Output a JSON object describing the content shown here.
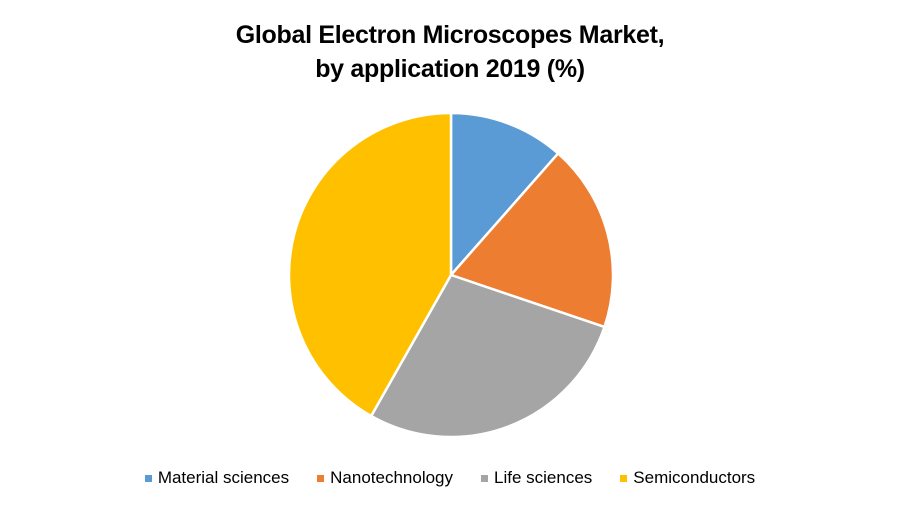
{
  "chart_data": {
    "type": "pie",
    "title": "Global Electron Microscopes Market, by application 2019 (%)",
    "title_lines": [
      "Global Electron Microscopes Market,",
      "by application 2019 (%)"
    ],
    "categories": [
      "Material sciences",
      "Nanotechnology",
      "Life sciences",
      "Semiconductors"
    ],
    "values": [
      11.5,
      18.7,
      28.0,
      41.8
    ],
    "colors": [
      "#5B9BD5",
      "#ED7D31",
      "#A5A5A5",
      "#FFC000"
    ],
    "start_angle_deg": 0,
    "direction": "clockwise",
    "data_labels": false,
    "legend_position": "bottom"
  },
  "legend": {
    "items": [
      {
        "label": "Material sciences",
        "color": "#5B9BD5"
      },
      {
        "label": "Nanotechnology",
        "color": "#ED7D31"
      },
      {
        "label": "Life sciences",
        "color": "#A5A5A5"
      },
      {
        "label": "Semiconductors",
        "color": "#FFC000"
      }
    ]
  }
}
